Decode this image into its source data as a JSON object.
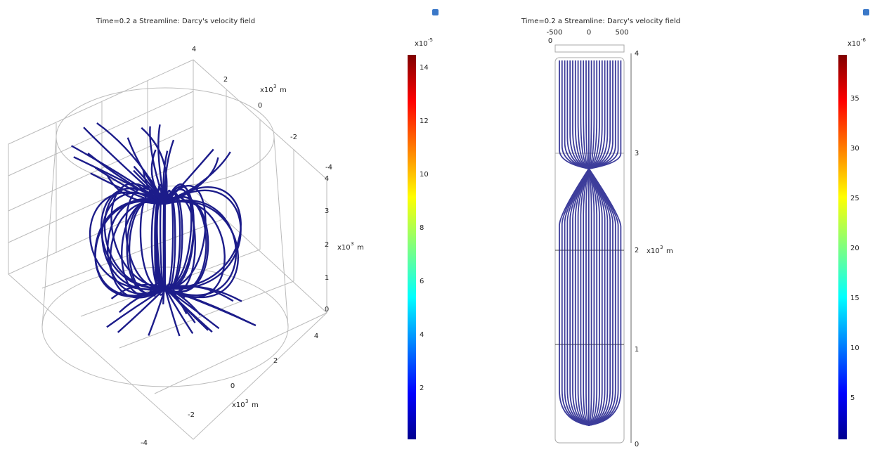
{
  "panels": [
    {
      "title": "Time=0.2 a   Streamline: Darcy's velocity field",
      "axes": [
        {
          "ticks": [
            "4",
            "2",
            "0",
            "-2",
            "-4"
          ],
          "unit": {
            "base": "x10",
            "exp": "3",
            "suffix": "m"
          }
        },
        {
          "ticks": [
            "0",
            "1",
            "2",
            "3",
            "4"
          ],
          "unit": {
            "base": "x10",
            "exp": "3",
            "suffix": "m"
          }
        },
        {
          "ticks": [
            "4",
            "2",
            "0",
            "-2",
            "-4"
          ],
          "unit": {
            "base": "x10",
            "exp": "3",
            "suffix": "m"
          }
        }
      ],
      "colorbar": {
        "base": "x10",
        "exp": "-5",
        "ticks": [
          "14",
          "12",
          "10",
          "8",
          "6",
          "4",
          "2"
        ]
      }
    },
    {
      "title": "Time=0.2 a   Streamline: Darcy's velocity field",
      "axes": [
        {
          "ticks": [
            "-500",
            "0",
            "500"
          ]
        },
        {
          "ticks": [
            "0"
          ]
        },
        {
          "ticks": [
            "4",
            "3",
            "2",
            "1",
            "0"
          ],
          "unit": {
            "base": "x10",
            "exp": "3",
            "suffix": "m"
          }
        }
      ],
      "colorbar": {
        "base": "x10",
        "exp": "-6",
        "ticks": [
          "35",
          "30",
          "25",
          "20",
          "15",
          "10",
          "5"
        ]
      }
    }
  ]
}
